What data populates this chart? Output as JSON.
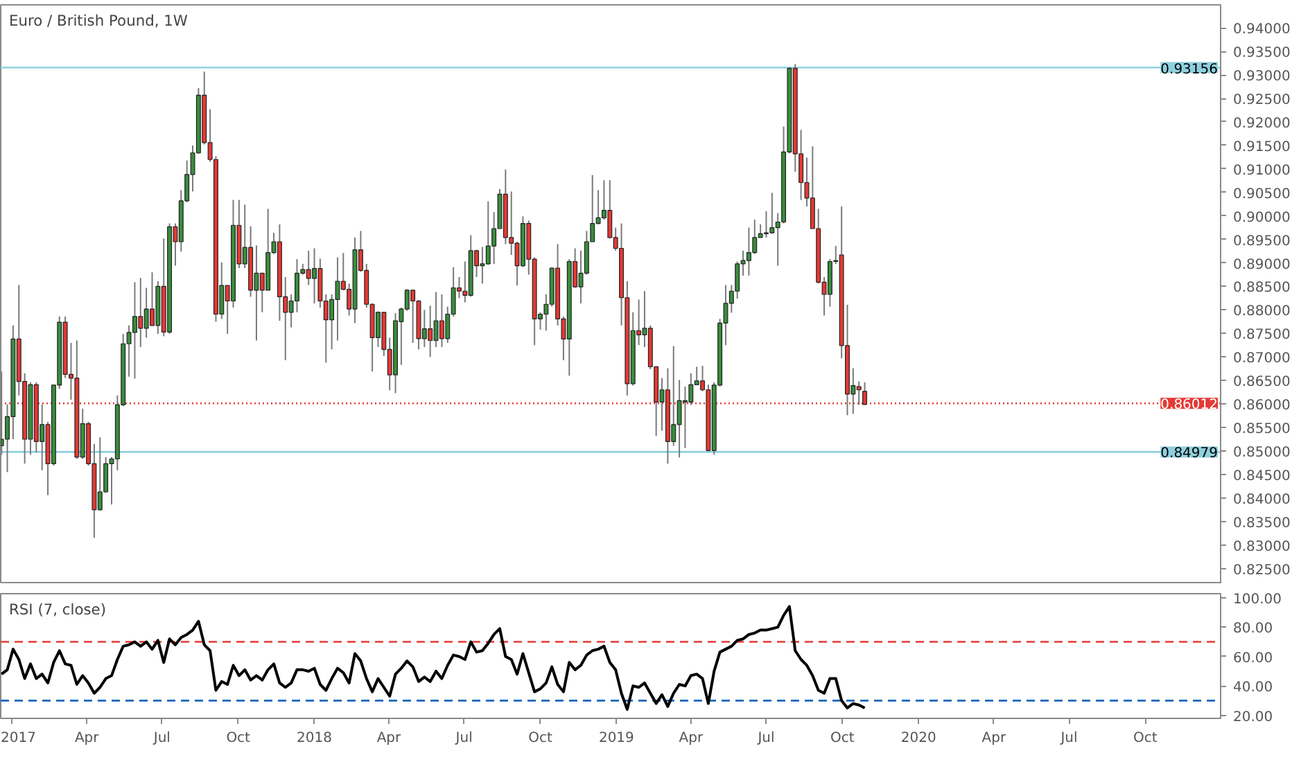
{
  "chart_data": [
    {
      "type": "candlestick",
      "title": "Euro / British Pound, 1W",
      "x": [
        "2016-12-19",
        "2016-12-26",
        "2017-01-02",
        "2017-01-09",
        "2017-01-16",
        "2017-01-23",
        "2017-01-30",
        "2017-02-06",
        "2017-02-13",
        "2017-02-20",
        "2017-02-27",
        "2017-03-06",
        "2017-03-13",
        "2017-03-20",
        "2017-03-27",
        "2017-04-03",
        "2017-04-10",
        "2017-04-17",
        "2017-04-24",
        "2017-05-01",
        "2017-05-08",
        "2017-05-15",
        "2017-05-22",
        "2017-05-29",
        "2017-06-05",
        "2017-06-12",
        "2017-06-19",
        "2017-06-26",
        "2017-07-03",
        "2017-07-10",
        "2017-07-17",
        "2017-07-24",
        "2017-07-31",
        "2017-08-07",
        "2017-08-14",
        "2017-08-21",
        "2017-08-28",
        "2017-09-04",
        "2017-09-11",
        "2017-09-18",
        "2017-09-25",
        "2017-10-02",
        "2017-10-09",
        "2017-10-16",
        "2017-10-23",
        "2017-10-30",
        "2017-11-06",
        "2017-11-13",
        "2017-11-20",
        "2017-11-27",
        "2017-12-04",
        "2017-12-11",
        "2017-12-18",
        "2017-12-25",
        "2018-01-01",
        "2018-01-08",
        "2018-01-15",
        "2018-01-22",
        "2018-01-29",
        "2018-02-05",
        "2018-02-12",
        "2018-02-19",
        "2018-02-26",
        "2018-03-05",
        "2018-03-12",
        "2018-03-19",
        "2018-03-26",
        "2018-04-02",
        "2018-04-09",
        "2018-04-16",
        "2018-04-23",
        "2018-04-30",
        "2018-05-07",
        "2018-05-14",
        "2018-05-21",
        "2018-05-28",
        "2018-06-04",
        "2018-06-11",
        "2018-06-18",
        "2018-06-25",
        "2018-07-02",
        "2018-07-09",
        "2018-07-16",
        "2018-07-23",
        "2018-07-30",
        "2018-08-06",
        "2018-08-13",
        "2018-08-20",
        "2018-08-27",
        "2018-09-03",
        "2018-09-10",
        "2018-09-17",
        "2018-09-24",
        "2018-10-01",
        "2018-10-08",
        "2018-10-15",
        "2018-10-22",
        "2018-10-29",
        "2018-11-05",
        "2018-11-12",
        "2018-11-19",
        "2018-11-26",
        "2018-12-03",
        "2018-12-10",
        "2018-12-17",
        "2018-12-24",
        "2018-12-31",
        "2019-01-07",
        "2019-01-14",
        "2019-01-21",
        "2019-01-28",
        "2019-02-04",
        "2019-02-11",
        "2019-02-18",
        "2019-02-25",
        "2019-03-04",
        "2019-03-11",
        "2019-03-18",
        "2019-03-25",
        "2019-04-01",
        "2019-04-08",
        "2019-04-15",
        "2019-04-22",
        "2019-04-29",
        "2019-05-06",
        "2019-05-13",
        "2019-05-20",
        "2019-05-27",
        "2019-06-03",
        "2019-06-10",
        "2019-06-17",
        "2019-06-24",
        "2019-07-01",
        "2019-07-08",
        "2019-07-15",
        "2019-07-22",
        "2019-07-29",
        "2019-08-05",
        "2019-08-12",
        "2019-08-19",
        "2019-08-26",
        "2019-09-02",
        "2019-09-09",
        "2019-09-16",
        "2019-09-23",
        "2019-09-30",
        "2019-10-07",
        "2019-10-14",
        "2019-10-21",
        "2019-10-28"
      ],
      "ohlc": [
        [
          0.8511,
          0.8669,
          0.8492,
          0.8525
        ],
        [
          0.8525,
          0.8599,
          0.8455,
          0.8573
        ],
        [
          0.8573,
          0.8767,
          0.8525,
          0.8738
        ],
        [
          0.8738,
          0.8853,
          0.8618,
          0.8648
        ],
        [
          0.8648,
          0.8665,
          0.8473,
          0.8525
        ],
        [
          0.8525,
          0.8646,
          0.8492,
          0.8641
        ],
        [
          0.8641,
          0.8646,
          0.8497,
          0.852
        ],
        [
          0.852,
          0.8599,
          0.8459,
          0.8556
        ],
        [
          0.8556,
          0.8562,
          0.8406,
          0.8473
        ],
        [
          0.8473,
          0.8641,
          0.8469,
          0.864
        ],
        [
          0.864,
          0.8786,
          0.8632,
          0.8774
        ],
        [
          0.8774,
          0.8786,
          0.8655,
          0.8663
        ],
        [
          0.8663,
          0.873,
          0.8609,
          0.8655
        ],
        [
          0.8655,
          0.8735,
          0.8483,
          0.8487
        ],
        [
          0.8487,
          0.859,
          0.8483,
          0.8558
        ],
        [
          0.8558,
          0.8562,
          0.8469,
          0.8473
        ],
        [
          0.8473,
          0.8515,
          0.8315,
          0.8375
        ],
        [
          0.8375,
          0.8529,
          0.8373,
          0.8413
        ],
        [
          0.8413,
          0.8487,
          0.8411,
          0.8473
        ],
        [
          0.8473,
          0.8487,
          0.8386,
          0.8483
        ],
        [
          0.8483,
          0.8618,
          0.8459,
          0.8598
        ],
        [
          0.8598,
          0.8749,
          0.8595,
          0.8728
        ],
        [
          0.8728,
          0.8767,
          0.8658,
          0.8752
        ],
        [
          0.8752,
          0.8859,
          0.8654,
          0.8786
        ],
        [
          0.8786,
          0.8868,
          0.8721,
          0.8761
        ],
        [
          0.8761,
          0.8847,
          0.8741,
          0.8802
        ],
        [
          0.8802,
          0.888,
          0.8767,
          0.8767
        ],
        [
          0.8767,
          0.8861,
          0.8749,
          0.885
        ],
        [
          0.885,
          0.8952,
          0.8744,
          0.8753
        ],
        [
          0.8753,
          0.8984,
          0.8749,
          0.8977
        ],
        [
          0.8977,
          0.8984,
          0.8894,
          0.8945
        ],
        [
          0.8945,
          0.9055,
          0.8924,
          0.9032
        ],
        [
          0.9032,
          0.9118,
          0.9029,
          0.9088
        ],
        [
          0.9088,
          0.915,
          0.9052,
          0.9134
        ],
        [
          0.9134,
          0.9272,
          0.9132,
          0.9257
        ],
        [
          0.9257,
          0.9307,
          0.9152,
          0.9156
        ],
        [
          0.9156,
          0.9227,
          0.9115,
          0.912
        ],
        [
          0.912,
          0.9127,
          0.8775,
          0.8791
        ],
        [
          0.8791,
          0.8901,
          0.8781,
          0.8852
        ],
        [
          0.8852,
          0.8852,
          0.8749,
          0.8819
        ],
        [
          0.8819,
          0.9034,
          0.8805,
          0.898
        ],
        [
          0.898,
          0.9034,
          0.8889,
          0.8898
        ],
        [
          0.8898,
          0.9024,
          0.8889,
          0.8933
        ],
        [
          0.8933,
          0.8978,
          0.8828,
          0.8842
        ],
        [
          0.8842,
          0.8937,
          0.8735,
          0.8878
        ],
        [
          0.8878,
          0.8878,
          0.8795,
          0.8842
        ],
        [
          0.8842,
          0.9015,
          0.8842,
          0.8922
        ],
        [
          0.8922,
          0.8964,
          0.8919,
          0.8945
        ],
        [
          0.8945,
          0.8982,
          0.8777,
          0.8828
        ],
        [
          0.8828,
          0.887,
          0.8693,
          0.8795
        ],
        [
          0.8795,
          0.8833,
          0.8763,
          0.8819
        ],
        [
          0.8819,
          0.8908,
          0.8795,
          0.8878
        ],
        [
          0.8878,
          0.8898,
          0.8875,
          0.8886
        ],
        [
          0.8886,
          0.8926,
          0.8853,
          0.8867
        ],
        [
          0.8867,
          0.8931,
          0.8814,
          0.8888
        ],
        [
          0.8888,
          0.8909,
          0.8805,
          0.8819
        ],
        [
          0.8819,
          0.8833,
          0.8688,
          0.8779
        ],
        [
          0.8779,
          0.8833,
          0.8716,
          0.8822
        ],
        [
          0.8822,
          0.8912,
          0.8735,
          0.8861
        ],
        [
          0.8861,
          0.8921,
          0.8842,
          0.8844
        ],
        [
          0.8844,
          0.8856,
          0.8788,
          0.8802
        ],
        [
          0.8802,
          0.8954,
          0.8772,
          0.8928
        ],
        [
          0.8928,
          0.8968,
          0.8881,
          0.8884
        ],
        [
          0.8884,
          0.8898,
          0.8805,
          0.8812
        ],
        [
          0.8812,
          0.8814,
          0.8669,
          0.8741
        ],
        [
          0.8741,
          0.8797,
          0.8721,
          0.8795
        ],
        [
          0.8795,
          0.8795,
          0.8702,
          0.8716
        ],
        [
          0.8716,
          0.8741,
          0.8629,
          0.8662
        ],
        [
          0.8662,
          0.8793,
          0.8623,
          0.8777
        ],
        [
          0.8775,
          0.8805,
          0.8683,
          0.8802
        ],
        [
          0.8802,
          0.8844,
          0.8798,
          0.8842
        ],
        [
          0.8842,
          0.8842,
          0.873,
          0.8819
        ],
        [
          0.8819,
          0.8821,
          0.8716,
          0.8739
        ],
        [
          0.8739,
          0.88,
          0.8721,
          0.876
        ],
        [
          0.876,
          0.8809,
          0.87,
          0.8735
        ],
        [
          0.8735,
          0.8838,
          0.8721,
          0.8777
        ],
        [
          0.8777,
          0.8833,
          0.8721,
          0.8739
        ],
        [
          0.8739,
          0.8807,
          0.873,
          0.8791
        ],
        [
          0.8791,
          0.8891,
          0.8786,
          0.8847
        ],
        [
          0.8847,
          0.887,
          0.8825,
          0.884
        ],
        [
          0.884,
          0.8903,
          0.8816,
          0.8831
        ],
        [
          0.8831,
          0.8959,
          0.8828,
          0.8926
        ],
        [
          0.8926,
          0.8928,
          0.887,
          0.8894
        ],
        [
          0.8894,
          0.8934,
          0.8856,
          0.8898
        ],
        [
          0.8898,
          0.9031,
          0.8896,
          0.8936
        ],
        [
          0.8936,
          0.9008,
          0.8898,
          0.8973
        ],
        [
          0.8973,
          0.9057,
          0.8973,
          0.9046
        ],
        [
          0.9046,
          0.9099,
          0.894,
          0.8954
        ],
        [
          0.8954,
          0.9052,
          0.8917,
          0.8942
        ],
        [
          0.8942,
          0.8945,
          0.8852,
          0.8894
        ],
        [
          0.8894,
          0.8999,
          0.8891,
          0.8984
        ],
        [
          0.8984,
          0.899,
          0.8875,
          0.8908
        ],
        [
          0.8908,
          0.8912,
          0.8725,
          0.8781
        ],
        [
          0.8781,
          0.8795,
          0.8758,
          0.8791
        ],
        [
          0.8791,
          0.8833,
          0.8756,
          0.8812
        ],
        [
          0.8812,
          0.8891,
          0.8807,
          0.8889
        ],
        [
          0.8889,
          0.894,
          0.8767,
          0.8781
        ],
        [
          0.8781,
          0.8786,
          0.8693,
          0.8738
        ],
        [
          0.8738,
          0.8908,
          0.866,
          0.8903
        ],
        [
          0.8903,
          0.8931,
          0.8847,
          0.8849
        ],
        [
          0.8849,
          0.8926,
          0.8814,
          0.8878
        ],
        [
          0.8878,
          0.8968,
          0.8875,
          0.8945
        ],
        [
          0.8945,
          0.9087,
          0.8945,
          0.8984
        ],
        [
          0.8984,
          0.9055,
          0.8982,
          0.8996
        ],
        [
          0.8996,
          0.9076,
          0.8992,
          0.9012
        ],
        [
          0.9012,
          0.9076,
          0.8952,
          0.8954
        ],
        [
          0.8954,
          0.8975,
          0.8926,
          0.8931
        ],
        [
          0.8931,
          0.8984,
          0.8767,
          0.8826
        ],
        [
          0.8826,
          0.8861,
          0.8618,
          0.8643
        ],
        [
          0.8643,
          0.8795,
          0.8639,
          0.8756
        ],
        [
          0.8756,
          0.8822,
          0.8725,
          0.8747
        ],
        [
          0.8747,
          0.884,
          0.8721,
          0.8761
        ],
        [
          0.8761,
          0.8767,
          0.8674,
          0.8679
        ],
        [
          0.8679,
          0.8681,
          0.8532,
          0.8604
        ],
        [
          0.8604,
          0.8655,
          0.8543,
          0.863
        ],
        [
          0.863,
          0.8676,
          0.8473,
          0.852
        ],
        [
          0.852,
          0.8723,
          0.8511,
          0.8556
        ],
        [
          0.8556,
          0.8651,
          0.8486,
          0.8607
        ],
        [
          0.8604,
          0.8637,
          0.8506,
          0.8607
        ],
        [
          0.8604,
          0.8665,
          0.8598,
          0.8641
        ],
        [
          0.8641,
          0.8679,
          0.864,
          0.8649
        ],
        [
          0.8649,
          0.8681,
          0.8627,
          0.863
        ],
        [
          0.863,
          0.8641,
          0.8499,
          0.8501
        ],
        [
          0.8501,
          0.8646,
          0.8492,
          0.864
        ],
        [
          0.864,
          0.8781,
          0.8637,
          0.8772
        ],
        [
          0.8772,
          0.8853,
          0.8725,
          0.8814
        ],
        [
          0.8814,
          0.8853,
          0.8794,
          0.884
        ],
        [
          0.884,
          0.8903,
          0.8824,
          0.8898
        ],
        [
          0.8898,
          0.8926,
          0.8873,
          0.8905
        ],
        [
          0.8905,
          0.8975,
          0.8873,
          0.8922
        ],
        [
          0.8922,
          0.8992,
          0.8919,
          0.8954
        ],
        [
          0.8954,
          0.8982,
          0.8954,
          0.8962
        ],
        [
          0.8962,
          0.901,
          0.8954,
          0.8964
        ],
        [
          0.8964,
          0.9049,
          0.8962,
          0.8975
        ],
        [
          0.8975,
          0.9006,
          0.8894,
          0.8987
        ],
        [
          0.8987,
          0.919,
          0.8984,
          0.9136
        ],
        [
          0.9136,
          0.9316,
          0.9133,
          0.9314
        ],
        [
          0.9314,
          0.9323,
          0.9094,
          0.9132
        ],
        [
          0.9132,
          0.9183,
          0.9034,
          0.9071
        ],
        [
          0.9071,
          0.9124,
          0.902,
          0.9038
        ],
        [
          0.9038,
          0.9148,
          0.8973,
          0.8973
        ],
        [
          0.8973,
          0.9015,
          0.8856,
          0.8859
        ],
        [
          0.8859,
          0.887,
          0.8788,
          0.8833
        ],
        [
          0.8833,
          0.8908,
          0.8807,
          0.8903
        ],
        [
          0.8903,
          0.8936,
          0.8898,
          0.8905
        ],
        [
          0.8917,
          0.902,
          0.8697,
          0.8724
        ],
        [
          0.8724,
          0.8811,
          0.8576,
          0.8621
        ],
        [
          0.8621,
          0.8676,
          0.8579,
          0.8639
        ],
        [
          0.8637,
          0.8648,
          0.8598,
          0.863
        ],
        [
          0.8627,
          0.8646,
          0.8598,
          0.8599
        ]
      ],
      "colors": [
        "#388e3c",
        "#388e3c",
        "#388e3c",
        "#e53935",
        "#e53935",
        "#388e3c",
        "#e53935",
        "#388e3c",
        "#e53935",
        "#388e3c",
        "#388e3c",
        "#e53935",
        "#e53935",
        "#e53935",
        "#388e3c",
        "#e53935",
        "#e53935",
        "#388e3c",
        "#388e3c",
        "#388e3c",
        "#388e3c",
        "#388e3c",
        "#388e3c",
        "#388e3c",
        "#e53935",
        "#388e3c",
        "#e53935",
        "#388e3c",
        "#e53935",
        "#388e3c",
        "#e53935",
        "#388e3c",
        "#388e3c",
        "#388e3c",
        "#388e3c",
        "#e53935",
        "#e53935",
        "#e53935",
        "#388e3c",
        "#e53935",
        "#388e3c",
        "#e53935",
        "#388e3c",
        "#e53935",
        "#388e3c",
        "#e53935",
        "#388e3c",
        "#388e3c",
        "#e53935",
        "#e53935",
        "#388e3c",
        "#388e3c",
        "#388e3c",
        "#e53935",
        "#388e3c",
        "#e53935",
        "#e53935",
        "#388e3c",
        "#388e3c",
        "#e53935",
        "#e53935",
        "#388e3c",
        "#e53935",
        "#e53935",
        "#e53935",
        "#388e3c",
        "#e53935",
        "#e53935",
        "#388e3c",
        "#388e3c",
        "#388e3c",
        "#e53935",
        "#e53935",
        "#388e3c",
        "#e53935",
        "#388e3c",
        "#e53935",
        "#388e3c",
        "#388e3c",
        "#e53935",
        "#e53935",
        "#388e3c",
        "#e53935",
        "#388e3c",
        "#388e3c",
        "#388e3c",
        "#388e3c",
        "#e53935",
        "#e53935",
        "#e53935",
        "#388e3c",
        "#e53935",
        "#e53935",
        "#388e3c",
        "#388e3c",
        "#388e3c",
        "#e53935",
        "#e53935",
        "#388e3c",
        "#e53935",
        "#388e3c",
        "#388e3c",
        "#388e3c",
        "#388e3c",
        "#388e3c",
        "#e53935",
        "#e53935",
        "#e53935",
        "#e53935",
        "#388e3c",
        "#e53935",
        "#388e3c",
        "#e53935",
        "#e53935",
        "#388e3c",
        "#e53935",
        "#388e3c",
        "#388e3c",
        "#388e3c",
        "#388e3c",
        "#388e3c",
        "#e53935",
        "#e53935",
        "#388e3c",
        "#388e3c",
        "#388e3c",
        "#388e3c",
        "#388e3c",
        "#388e3c",
        "#388e3c",
        "#388e3c",
        "#388e3c",
        "#388e3c",
        "#388e3c",
        "#388e3c",
        "#388e3c",
        "#388e3c",
        "#e53935",
        "#e53935",
        "#e53935",
        "#e53935",
        "#e53935",
        "#e53935",
        "#388e3c",
        "#388e3c",
        "#e53935",
        "#e53935",
        "#388e3c",
        "#e53935",
        "#e53935"
      ],
      "xlim": [
        "2016-12-18",
        "2020-12-31"
      ],
      "ylim": [
        0.8217,
        0.9449
      ],
      "yticks": [
        {
          "value": 0.825,
          "label": "0.82500"
        },
        {
          "value": 0.83,
          "label": "0.83000"
        },
        {
          "value": 0.835,
          "label": "0.83500"
        },
        {
          "value": 0.84,
          "label": "0.84000"
        },
        {
          "value": 0.845,
          "label": "0.84500"
        },
        {
          "value": 0.85,
          "label": "0.85000"
        },
        {
          "value": 0.855,
          "label": "0.85500"
        },
        {
          "value": 0.86,
          "label": "0.86000"
        },
        {
          "value": 0.865,
          "label": "0.86500"
        },
        {
          "value": 0.87,
          "label": "0.87000"
        },
        {
          "value": 0.875,
          "label": "0.87500"
        },
        {
          "value": 0.88,
          "label": "0.88000"
        },
        {
          "value": 0.885,
          "label": "0.88500"
        },
        {
          "value": 0.89,
          "label": "0.89000"
        },
        {
          "value": 0.895,
          "label": "0.89500"
        },
        {
          "value": 0.9,
          "label": "0.90000"
        },
        {
          "value": 0.905,
          "label": "0.90500"
        },
        {
          "value": 0.91,
          "label": "0.91000"
        },
        {
          "value": 0.915,
          "label": "0.91500"
        },
        {
          "value": 0.92,
          "label": "0.92000"
        },
        {
          "value": 0.925,
          "label": "0.92500"
        },
        {
          "value": 0.93,
          "label": "0.93000"
        },
        {
          "value": 0.935,
          "label": "0.93500"
        },
        {
          "value": 0.94,
          "label": "0.94000"
        }
      ],
      "ref_lines": [
        {
          "axis": "y",
          "value": 0.93156,
          "label": "0.93156",
          "color": "#8fd0de",
          "line_style": "solid"
        },
        {
          "axis": "y",
          "value": 0.86012,
          "label": "0.86012",
          "color": "#e53935",
          "line_style": "dotted"
        },
        {
          "axis": "y",
          "value": 0.84979,
          "label": "0.84979",
          "color": "#8fd0de",
          "line_style": "solid"
        }
      ],
      "tick_labels": "y"
    },
    {
      "type": "line",
      "title": "RSI (7, close)",
      "x": [
        "2016-12-19",
        "2016-12-26",
        "2017-01-02",
        "2017-01-09",
        "2017-01-16",
        "2017-01-23",
        "2017-01-30",
        "2017-02-06",
        "2017-02-13",
        "2017-02-20",
        "2017-02-27",
        "2017-03-06",
        "2017-03-13",
        "2017-03-20",
        "2017-03-27",
        "2017-04-03",
        "2017-04-10",
        "2017-04-17",
        "2017-04-24",
        "2017-05-01",
        "2017-05-08",
        "2017-05-15",
        "2017-05-22",
        "2017-05-29",
        "2017-06-05",
        "2017-06-12",
        "2017-06-19",
        "2017-06-26",
        "2017-07-03",
        "2017-07-10",
        "2017-07-17",
        "2017-07-24",
        "2017-07-31",
        "2017-08-07",
        "2017-08-14",
        "2017-08-21",
        "2017-08-28",
        "2017-09-04",
        "2017-09-11",
        "2017-09-18",
        "2017-09-25",
        "2017-10-02",
        "2017-10-09",
        "2017-10-16",
        "2017-10-23",
        "2017-10-30",
        "2017-11-06",
        "2017-11-13",
        "2017-11-20",
        "2017-11-27",
        "2017-12-04",
        "2017-12-11",
        "2017-12-18",
        "2017-12-25",
        "2018-01-01",
        "2018-01-08",
        "2018-01-15",
        "2018-01-22",
        "2018-01-29",
        "2018-02-05",
        "2018-02-12",
        "2018-02-19",
        "2018-02-26",
        "2018-03-05",
        "2018-03-12",
        "2018-03-19",
        "2018-03-26",
        "2018-04-02",
        "2018-04-09",
        "2018-04-16",
        "2018-04-23",
        "2018-04-30",
        "2018-05-07",
        "2018-05-14",
        "2018-05-21",
        "2018-05-28",
        "2018-06-04",
        "2018-06-11",
        "2018-06-18",
        "2018-06-25",
        "2018-07-02",
        "2018-07-09",
        "2018-07-16",
        "2018-07-23",
        "2018-07-30",
        "2018-08-06",
        "2018-08-13",
        "2018-08-20",
        "2018-08-27",
        "2018-09-03",
        "2018-09-10",
        "2018-09-17",
        "2018-09-24",
        "2018-10-01",
        "2018-10-08",
        "2018-10-15",
        "2018-10-22",
        "2018-10-29",
        "2018-11-05",
        "2018-11-12",
        "2018-11-19",
        "2018-11-26",
        "2018-12-03",
        "2018-12-10",
        "2018-12-17",
        "2018-12-24",
        "2018-12-31",
        "2019-01-07",
        "2019-01-14",
        "2019-01-21",
        "2019-01-28",
        "2019-02-04",
        "2019-02-11",
        "2019-02-18",
        "2019-02-25",
        "2019-03-04",
        "2019-03-11",
        "2019-03-18",
        "2019-03-25",
        "2019-04-01",
        "2019-04-08",
        "2019-04-15",
        "2019-04-22",
        "2019-04-29",
        "2019-05-06",
        "2019-05-13",
        "2019-05-20",
        "2019-05-27",
        "2019-06-03",
        "2019-06-10",
        "2019-06-17",
        "2019-06-24",
        "2019-07-01",
        "2019-07-08",
        "2019-07-15",
        "2019-07-22",
        "2019-07-29",
        "2019-08-05",
        "2019-08-12",
        "2019-08-19",
        "2019-08-26",
        "2019-09-02",
        "2019-09-09",
        "2019-09-16",
        "2019-09-23",
        "2019-09-30",
        "2019-10-07",
        "2019-10-14",
        "2019-10-21",
        "2019-10-28"
      ],
      "series": [
        {
          "color": "#000000",
          "values": [
            48,
            51,
            65,
            58,
            45,
            55,
            45,
            48,
            42,
            56,
            64,
            55,
            54,
            41,
            47,
            42,
            35,
            39,
            45,
            47,
            58,
            67,
            68,
            70,
            67,
            70,
            65,
            71,
            56,
            72,
            68,
            73,
            75,
            78,
            84,
            68,
            64,
            37,
            43,
            41,
            54,
            47,
            51,
            44,
            47,
            44,
            51,
            55,
            42,
            39,
            42,
            51,
            51,
            50,
            52,
            41,
            37,
            45,
            52,
            49,
            42,
            62,
            57,
            45,
            36,
            45,
            39,
            33,
            48,
            52,
            57,
            53,
            43,
            46,
            43,
            50,
            45,
            54,
            61,
            60,
            58,
            70,
            63,
            64,
            69,
            75,
            79,
            60,
            58,
            48,
            62,
            49,
            36,
            38,
            42,
            53,
            41,
            36,
            56,
            51,
            54,
            61,
            64,
            65,
            67,
            56,
            51,
            35,
            24,
            40,
            39,
            42,
            35,
            28,
            34,
            26,
            35,
            41,
            40,
            47,
            48,
            45,
            28,
            50,
            63,
            65,
            67,
            71,
            72,
            75,
            76,
            78,
            78,
            79,
            80,
            88,
            94,
            64,
            58,
            54,
            47,
            37,
            35,
            45,
            45,
            30,
            25,
            28,
            27,
            25
          ]
        }
      ],
      "xlim": [
        "2016-12-18",
        "2020-12-31"
      ],
      "xticks": [
        {
          "value": "2017-01-01",
          "label": "2017"
        },
        {
          "value": "2017-04-01",
          "label": "Apr"
        },
        {
          "value": "2017-07-01",
          "label": "Jul"
        },
        {
          "value": "2017-10-01",
          "label": "Oct"
        },
        {
          "value": "2018-01-01",
          "label": "2018"
        },
        {
          "value": "2018-04-01",
          "label": "Apr"
        },
        {
          "value": "2018-07-01",
          "label": "Jul"
        },
        {
          "value": "2018-10-01",
          "label": "Oct"
        },
        {
          "value": "2019-01-01",
          "label": "2019"
        },
        {
          "value": "2019-04-01",
          "label": "Apr"
        },
        {
          "value": "2019-07-01",
          "label": "Jul"
        },
        {
          "value": "2019-10-01",
          "label": "Oct"
        },
        {
          "value": "2020-01-01",
          "label": "2020"
        },
        {
          "value": "2020-04-01",
          "label": "Apr"
        },
        {
          "value": "2020-07-01",
          "label": "Jul"
        },
        {
          "value": "2020-10-01",
          "label": "Oct"
        }
      ],
      "ylim": [
        17.9,
        102.8
      ],
      "yticks": [
        {
          "value": 20,
          "label": "20.00"
        },
        {
          "value": 40,
          "label": "40.00"
        },
        {
          "value": 60,
          "label": "60.00"
        },
        {
          "value": 80,
          "label": "80.00"
        },
        {
          "value": 100,
          "label": "100.00"
        }
      ],
      "ref_lines": [
        {
          "axis": "y",
          "value": 70,
          "color": "#e53935",
          "line_style": "dashed"
        },
        {
          "axis": "y",
          "value": 30,
          "color": "#1565c0",
          "line_style": "dashed"
        }
      ]
    }
  ]
}
